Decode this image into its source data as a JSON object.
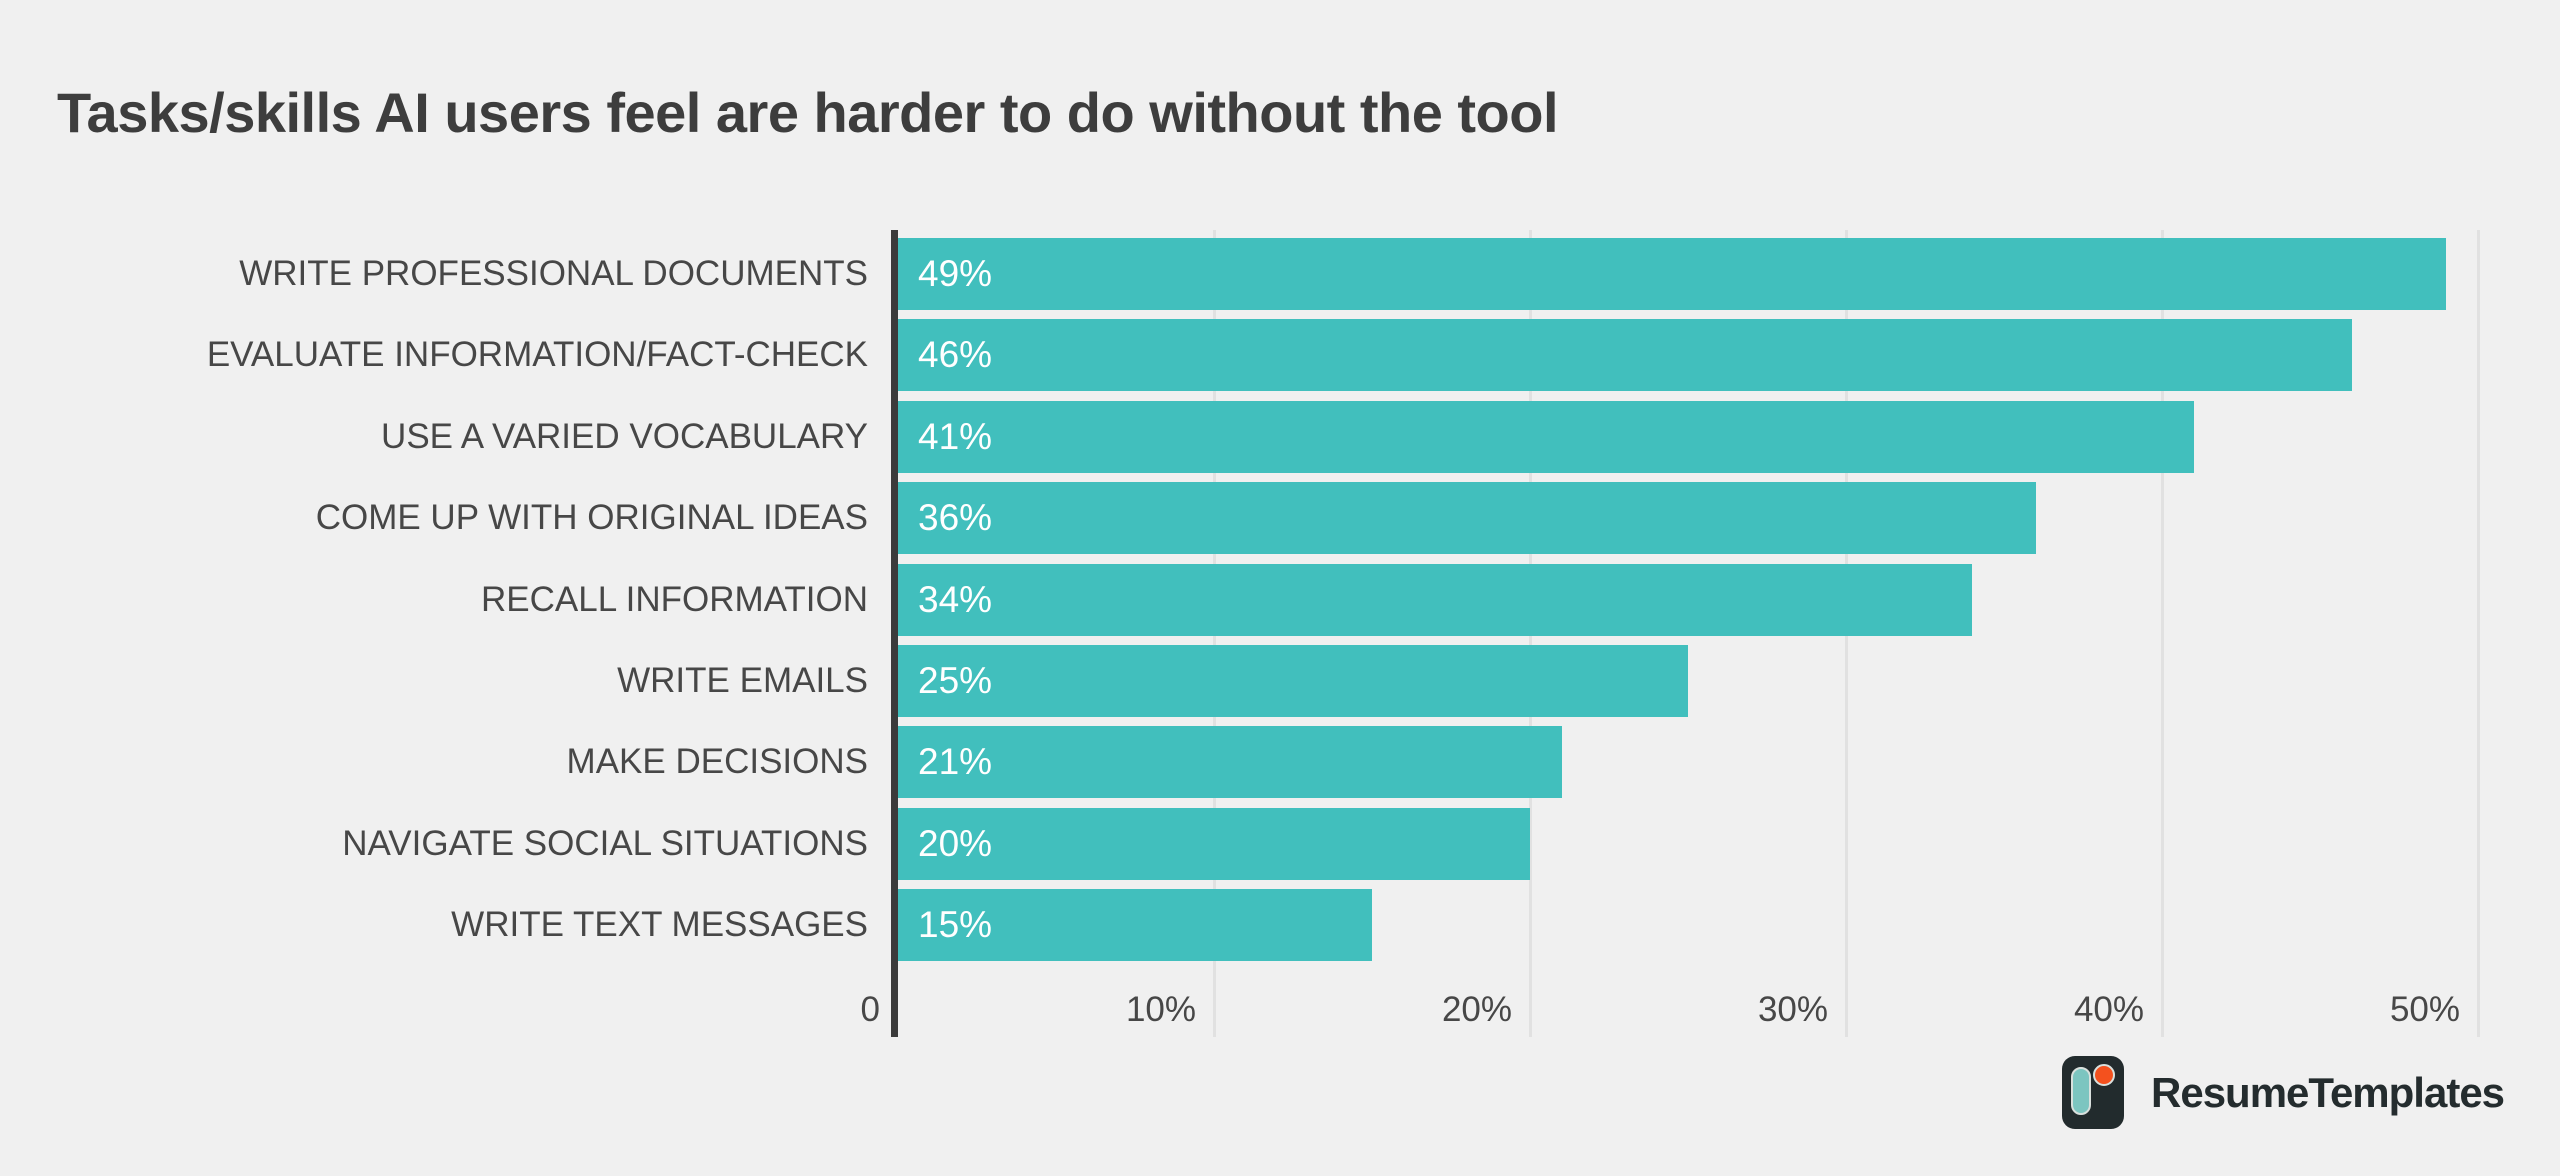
{
  "title": "Tasks/skills AI users feel are harder to do without the tool",
  "chart_data": {
    "type": "bar",
    "orientation": "horizontal",
    "title": "Tasks/skills AI users feel are harder to do without the tool",
    "categories": [
      "WRITE PROFESSIONAL DOCUMENTS",
      "EVALUATE INFORMATION/FACT-CHECK",
      "USE A VARIED VOCABULARY",
      "COME UP WITH ORIGINAL IDEAS",
      "RECALL INFORMATION",
      "WRITE EMAILS",
      "MAKE DECISIONS",
      "NAVIGATE SOCIAL SITUATIONS",
      "WRITE TEXT MESSAGES"
    ],
    "values": [
      49,
      46,
      41,
      36,
      34,
      25,
      21,
      20,
      15
    ],
    "value_labels": [
      "49%",
      "46%",
      "41%",
      "36%",
      "34%",
      "25%",
      "21%",
      "20%",
      "15%"
    ],
    "xlim": [
      0,
      50
    ],
    "ticks": [
      {
        "v": 0,
        "label": "0"
      },
      {
        "v": 10,
        "label": "10%"
      },
      {
        "v": 20,
        "label": "20%"
      },
      {
        "v": 30,
        "label": "30%"
      },
      {
        "v": 40,
        "label": "40%"
      },
      {
        "v": 50,
        "label": "50%"
      }
    ],
    "grid": "vertical gridlines every 10%, drawn behind bars and extending below axis labels",
    "legend": "none",
    "colors": {
      "bar": "#41bfbd",
      "value_label": "#ffffff",
      "category_label": "#474747",
      "tick_label": "#474747",
      "axis_line": "#3b3b3b",
      "gridline": "#e1e1e1",
      "background": "#f0f0f0",
      "title": "#3d3d3d"
    }
  },
  "branding": {
    "text": "ResumeTemplates",
    "icon": "resumetemplates-logo-icon",
    "colors": {
      "icon_bg": "#222b2d",
      "icon_pill": "#7cc5c0",
      "icon_dot": "#f4511e",
      "text": "#242c2e"
    }
  }
}
